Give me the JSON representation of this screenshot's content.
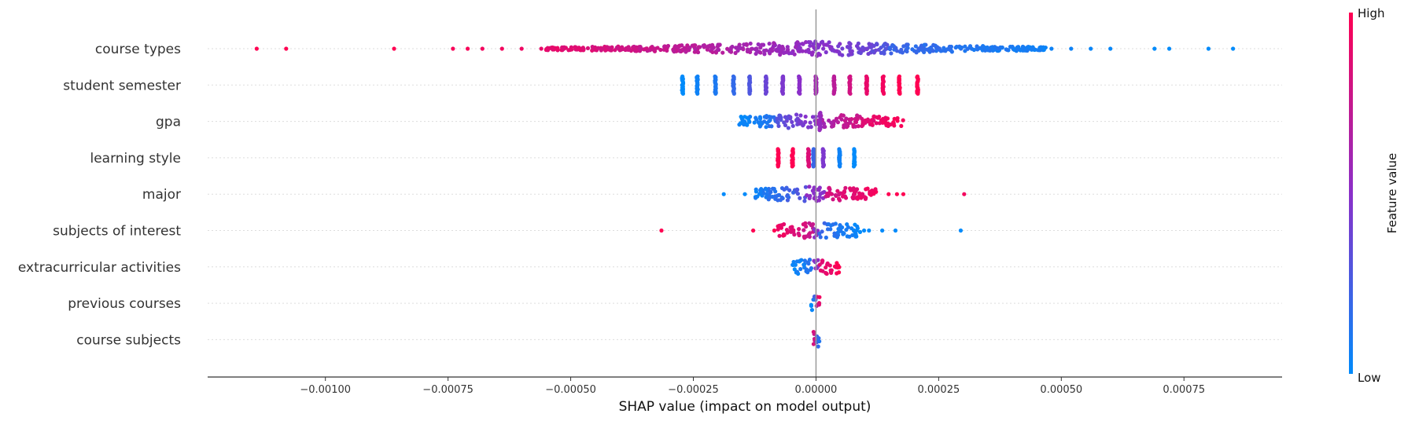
{
  "chart_data": {
    "type": "scatter",
    "subtype": "shap-beeswarm",
    "xlabel": "SHAP value (impact on model output)",
    "xlim": [
      -0.00124,
      0.00095
    ],
    "x_ticks": [
      -0.001,
      -0.00075,
      -0.0005,
      -0.00025,
      0.0,
      0.00025,
      0.0005,
      0.00075
    ],
    "x_tick_labels": [
      "−0.00100",
      "−0.00075",
      "−0.00050",
      "−0.00025",
      "0.00000",
      "0.00025",
      "0.00050",
      "0.00075"
    ],
    "zero_line": 0,
    "colorbar": {
      "label": "Feature value",
      "high_label": "High",
      "low_label": "Low",
      "high_color": "#ff0052",
      "mid_color": "#8b2fc9",
      "low_color": "#008bfb"
    },
    "features": [
      {
        "name": "course types",
        "x_min": -0.00115,
        "x_max": 0.00086,
        "points": [
          {
            "x": -0.00114,
            "v": 1.0
          },
          {
            "x": -0.00108,
            "v": 1.0
          },
          {
            "x": -0.00086,
            "v": 1.0
          },
          {
            "x": -0.00074,
            "v": 0.97
          },
          {
            "x": -0.00071,
            "v": 0.97
          },
          {
            "x": -0.00068,
            "v": 0.95
          },
          {
            "x": -0.00064,
            "v": 0.95
          },
          {
            "x": -0.0006,
            "v": 0.93
          },
          {
            "x": -0.00056,
            "v": 0.9
          },
          {
            "x": 0.00048,
            "v": 0.05
          },
          {
            "x": 0.00052,
            "v": 0.05
          },
          {
            "x": 0.00056,
            "v": 0.03
          },
          {
            "x": 0.0006,
            "v": 0.02
          },
          {
            "x": 0.00069,
            "v": 0.0
          },
          {
            "x": 0.00072,
            "v": 0.0
          },
          {
            "x": 0.0008,
            "v": 0.0
          },
          {
            "x": 0.00085,
            "v": 0.0
          }
        ],
        "dense_segments": [
          {
            "from": -0.00055,
            "to": -0.00025,
            "v_from": 0.9,
            "v_to": 0.7
          },
          {
            "from": -0.00025,
            "to": 0.0,
            "v_from": 0.7,
            "v_to": 0.5
          },
          {
            "from": 0.0,
            "to": 0.00013,
            "v_from": 0.5,
            "v_to": 0.35
          },
          {
            "from": 0.00013,
            "to": 0.00015,
            "v_from": 0.3,
            "v_to": 0.3
          },
          {
            "from": 0.00015,
            "to": 0.00047,
            "v_from": 0.2,
            "v_to": 0.05
          }
        ]
      },
      {
        "name": "student semester",
        "x_min": -0.00027,
        "x_max": 0.00021,
        "clusters": [
          {
            "x": -0.000272,
            "v": 0.0
          },
          {
            "x": -0.000242,
            "v": 0.05
          },
          {
            "x": -0.000205,
            "v": 0.1
          },
          {
            "x": -0.000168,
            "v": 0.18
          },
          {
            "x": -0.000135,
            "v": 0.28
          },
          {
            "x": -0.000102,
            "v": 0.38
          },
          {
            "x": -6.8e-05,
            "v": 0.45
          },
          {
            "x": -3.4e-05,
            "v": 0.5
          },
          {
            "x": 0.0,
            "v": 0.6
          },
          {
            "x": 3.7e-05,
            "v": 0.7
          },
          {
            "x": 6.9e-05,
            "v": 0.8
          },
          {
            "x": 0.000103,
            "v": 0.9
          },
          {
            "x": 0.000137,
            "v": 0.95
          },
          {
            "x": 0.00017,
            "v": 1.0
          },
          {
            "x": 0.000207,
            "v": 1.0
          }
        ]
      },
      {
        "name": "gpa",
        "x_min": -0.00016,
        "x_max": 0.00018,
        "dense_segments": [
          {
            "from": -0.00016,
            "to": -8e-05,
            "v_from": 0.0,
            "v_to": 0.15
          },
          {
            "from": -8e-05,
            "to": 0.0,
            "v_from": 0.3,
            "v_to": 0.5
          },
          {
            "from": 0.0,
            "to": 9e-05,
            "v_from": 0.6,
            "v_to": 0.8
          },
          {
            "from": 9e-05,
            "to": 0.00018,
            "v_from": 0.85,
            "v_to": 1.0
          }
        ],
        "clusters": [
          {
            "x": 8e-06,
            "v": 0.55
          }
        ]
      },
      {
        "name": "learning style",
        "x_min": -8e-05,
        "x_max": 8e-05,
        "clusters": [
          {
            "x": -7.7e-05,
            "v": 1.0
          },
          {
            "x": -4.8e-05,
            "v": 1.0
          },
          {
            "x": -1.5e-05,
            "v": 0.85
          },
          {
            "x": -5e-06,
            "v": 0.2
          },
          {
            "x": 1.5e-05,
            "v": 0.45
          },
          {
            "x": 4.8e-05,
            "v": 0.05
          },
          {
            "x": 7.8e-05,
            "v": 0.0
          }
        ]
      },
      {
        "name": "major",
        "x_min": -0.00019,
        "x_max": 0.0003,
        "points": [
          {
            "x": -0.000188,
            "v": 0.0
          },
          {
            "x": -0.000145,
            "v": 0.0
          },
          {
            "x": 0.000148,
            "v": 1.0
          },
          {
            "x": 0.000165,
            "v": 1.0
          },
          {
            "x": 0.000178,
            "v": 1.0
          },
          {
            "x": 0.000302,
            "v": 0.95
          }
        ],
        "dense_segments": [
          {
            "from": -0.000125,
            "to": -2e-05,
            "v_from": 0.05,
            "v_to": 0.3
          },
          {
            "from": -2e-05,
            "to": 2e-05,
            "v_from": 0.5,
            "v_to": 0.5
          },
          {
            "from": 2e-05,
            "to": 0.000125,
            "v_from": 0.8,
            "v_to": 0.95
          }
        ]
      },
      {
        "name": "subjects of interest",
        "x_min": -0.00032,
        "x_max": 0.0003,
        "points": [
          {
            "x": -0.000315,
            "v": 1.0
          },
          {
            "x": -0.000128,
            "v": 1.0
          },
          {
            "x": -8.5e-05,
            "v": 1.0
          },
          {
            "x": 9.8e-05,
            "v": 0.0
          },
          {
            "x": 0.000108,
            "v": 0.0
          },
          {
            "x": 0.000135,
            "v": 0.0
          },
          {
            "x": 0.000162,
            "v": 0.0
          },
          {
            "x": 0.000295,
            "v": 0.0
          }
        ],
        "dense_segments": [
          {
            "from": -8e-05,
            "to": -5e-06,
            "v_from": 0.95,
            "v_to": 0.75
          },
          {
            "from": -5e-06,
            "to": 5e-06,
            "v_from": 0.5,
            "v_to": 0.5
          },
          {
            "from": 5e-06,
            "to": 9e-05,
            "v_from": 0.2,
            "v_to": 0.0
          }
        ]
      },
      {
        "name": "extracurricular activities",
        "x_min": -5e-05,
        "x_max": 5e-05,
        "dense_segments": [
          {
            "from": -5e-05,
            "to": -5e-06,
            "v_from": 0.0,
            "v_to": 0.15
          },
          {
            "from": -5e-06,
            "to": 5e-06,
            "v_from": 0.5,
            "v_to": 0.5
          },
          {
            "from": 5e-06,
            "to": 5e-05,
            "v_from": 0.85,
            "v_to": 1.0
          }
        ]
      },
      {
        "name": "previous courses",
        "x_min": -1e-05,
        "x_max": 1e-05,
        "dense_segments": [
          {
            "from": -1e-05,
            "to": 0.0,
            "v_from": 0.0,
            "v_to": 0.3
          },
          {
            "from": 0.0,
            "to": 1e-05,
            "v_from": 0.7,
            "v_to": 1.0
          }
        ]
      },
      {
        "name": "course subjects",
        "x_min": -1e-05,
        "x_max": 1e-05,
        "dense_segments": [
          {
            "from": -1e-05,
            "to": 0.0,
            "v_from": 1.0,
            "v_to": 0.7
          },
          {
            "from": 0.0,
            "to": 1e-05,
            "v_from": 0.3,
            "v_to": 0.0
          }
        ]
      }
    ]
  }
}
